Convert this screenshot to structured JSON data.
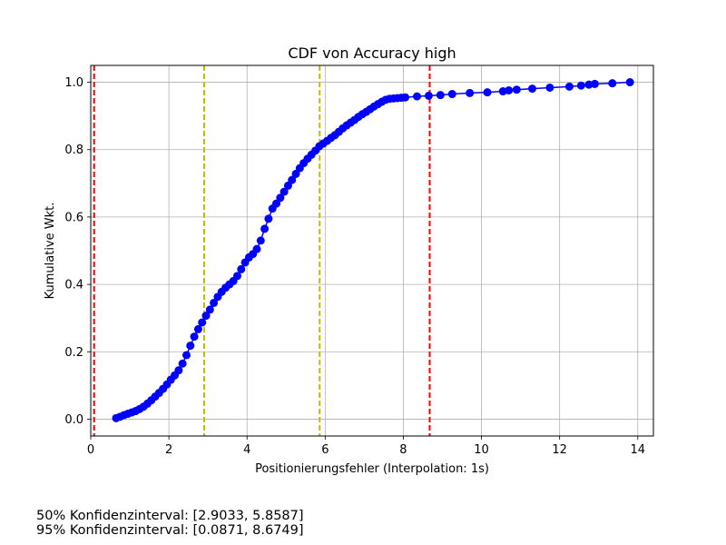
{
  "chart_data": {
    "type": "line",
    "title": "CDF von Accuracy high",
    "xlabel": "Positionierungsfehler (Interpolation: 1s)",
    "ylabel": "Kumulative Wkt.",
    "xlim": [
      0,
      14.4
    ],
    "ylim": [
      -0.05,
      1.05
    ],
    "x_ticks": [
      "0",
      "2",
      "4",
      "6",
      "8",
      "10",
      "12",
      "14"
    ],
    "y_ticks": [
      "0.0",
      "0.2",
      "0.4",
      "0.6",
      "0.8",
      "1.0"
    ],
    "grid": true,
    "line_color": "#0000ff",
    "marker": "circle",
    "series": [
      {
        "x": [
          0.65,
          0.75,
          0.85,
          0.95,
          1.05,
          1.15,
          1.25,
          1.35,
          1.45,
          1.55,
          1.65,
          1.75,
          1.85,
          1.95,
          2.05,
          2.15,
          2.25,
          2.35,
          2.45,
          2.55,
          2.65,
          2.75,
          2.85,
          2.95,
          3.05,
          3.15,
          3.25,
          3.35,
          3.45,
          3.55,
          3.65,
          3.75,
          3.85,
          3.95,
          4.05,
          4.15,
          4.25,
          4.35,
          4.45,
          4.55,
          4.65,
          4.75,
          4.85,
          4.95,
          5.05,
          5.15,
          5.25,
          5.35,
          5.45,
          5.55,
          5.65,
          5.75,
          5.85,
          5.95,
          6.05,
          6.15,
          6.25,
          6.35,
          6.45,
          6.55,
          6.65,
          6.75,
          6.85,
          6.95,
          7.05,
          7.15,
          7.25,
          7.35,
          7.45,
          7.55,
          7.65,
          7.75,
          7.85,
          7.95,
          8.05,
          8.35,
          8.65,
          8.95,
          9.25,
          9.7,
          10.15,
          10.55,
          10.7,
          10.9,
          11.3,
          11.75,
          12.25,
          12.55,
          12.75,
          12.9,
          13.35,
          13.8
        ],
        "y": [
          0.003,
          0.007,
          0.012,
          0.016,
          0.02,
          0.024,
          0.03,
          0.037,
          0.046,
          0.056,
          0.067,
          0.078,
          0.09,
          0.103,
          0.117,
          0.13,
          0.145,
          0.165,
          0.19,
          0.218,
          0.245,
          0.267,
          0.287,
          0.307,
          0.325,
          0.345,
          0.363,
          0.378,
          0.39,
          0.4,
          0.41,
          0.425,
          0.445,
          0.465,
          0.48,
          0.49,
          0.505,
          0.53,
          0.565,
          0.595,
          0.625,
          0.64,
          0.657,
          0.675,
          0.693,
          0.71,
          0.728,
          0.745,
          0.76,
          0.773,
          0.785,
          0.797,
          0.81,
          0.818,
          0.826,
          0.835,
          0.843,
          0.853,
          0.863,
          0.872,
          0.88,
          0.888,
          0.897,
          0.905,
          0.912,
          0.92,
          0.928,
          0.935,
          0.942,
          0.948,
          0.951,
          0.952,
          0.953,
          0.954,
          0.955,
          0.958,
          0.96,
          0.962,
          0.965,
          0.968,
          0.97,
          0.973,
          0.976,
          0.978,
          0.981,
          0.984,
          0.987,
          0.99,
          0.993,
          0.995,
          0.997,
          1.0
        ]
      }
    ],
    "vlines": [
      {
        "x": 0.0871,
        "color": "#ff0000"
      },
      {
        "x": 2.9033,
        "color": "#bfbf00"
      },
      {
        "x": 5.8587,
        "color": "#bfbf00"
      },
      {
        "x": 8.6749,
        "color": "#ff0000"
      }
    ]
  },
  "notes": [
    "50% Konfidenzinterval: [2.9033, 5.8587]",
    "95% Konfidenzinterval: [0.0871, 8.6749]"
  ]
}
